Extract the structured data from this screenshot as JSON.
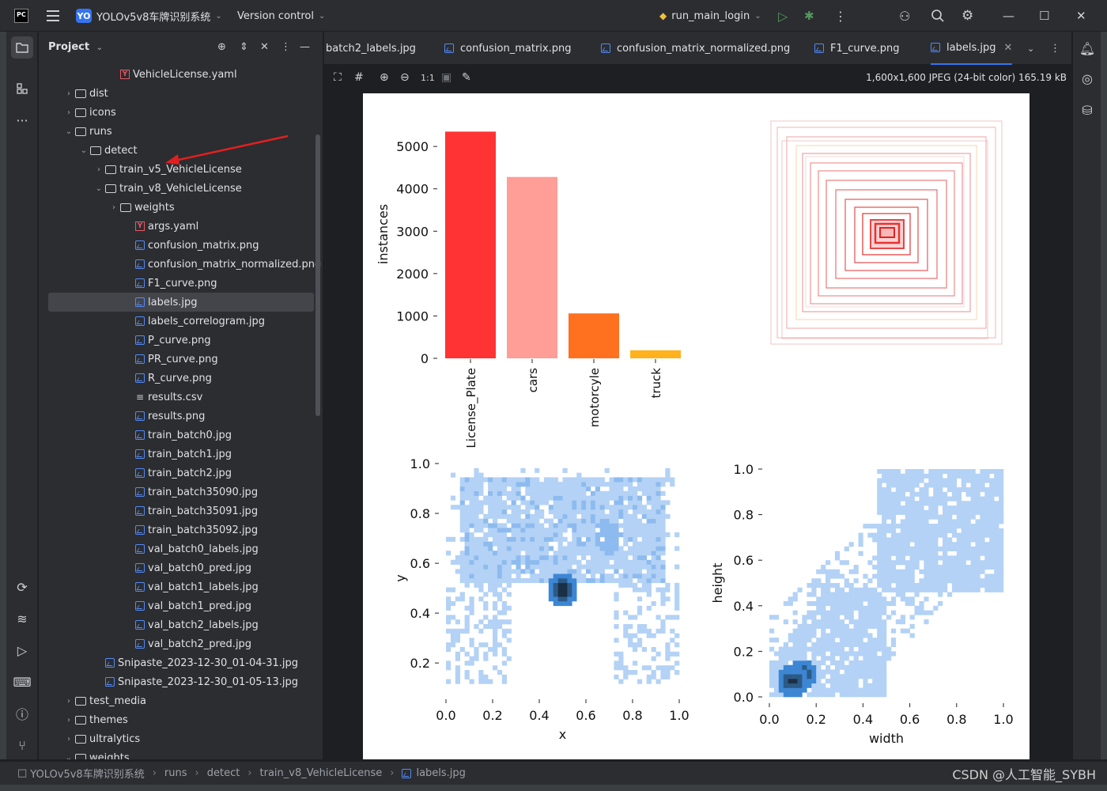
{
  "titlebar": {
    "project_badge": "YO",
    "project_name": "YOLOv5v8车牌识别系统",
    "version_control": "Version control",
    "run_config": "run_main_login"
  },
  "project_panel": {
    "title": "Project",
    "tree": [
      {
        "label": "VehicleLicense.yaml",
        "indent": 5,
        "type": "yaml",
        "chevron": ""
      },
      {
        "label": "dist",
        "indent": 2,
        "type": "folder",
        "chevron": "›"
      },
      {
        "label": "icons",
        "indent": 2,
        "type": "folder",
        "chevron": "›"
      },
      {
        "label": "runs",
        "indent": 2,
        "type": "folder",
        "chevron": "⌄"
      },
      {
        "label": "detect",
        "indent": 3,
        "type": "folder",
        "chevron": "⌄"
      },
      {
        "label": "train_v5_VehicleLicense",
        "indent": 4,
        "type": "folder",
        "chevron": "›"
      },
      {
        "label": "train_v8_VehicleLicense",
        "indent": 4,
        "type": "folder",
        "chevron": "⌄"
      },
      {
        "label": "weights",
        "indent": 5,
        "type": "folder",
        "chevron": "›"
      },
      {
        "label": "args.yaml",
        "indent": 6,
        "type": "yaml",
        "chevron": ""
      },
      {
        "label": "confusion_matrix.png",
        "indent": 6,
        "type": "img",
        "chevron": ""
      },
      {
        "label": "confusion_matrix_normalized.png",
        "indent": 6,
        "type": "img",
        "chevron": ""
      },
      {
        "label": "F1_curve.png",
        "indent": 6,
        "type": "img",
        "chevron": ""
      },
      {
        "label": "labels.jpg",
        "indent": 6,
        "type": "img",
        "chevron": "",
        "selected": true
      },
      {
        "label": "labels_correlogram.jpg",
        "indent": 6,
        "type": "img",
        "chevron": ""
      },
      {
        "label": "P_curve.png",
        "indent": 6,
        "type": "img",
        "chevron": ""
      },
      {
        "label": "PR_curve.png",
        "indent": 6,
        "type": "img",
        "chevron": ""
      },
      {
        "label": "R_curve.png",
        "indent": 6,
        "type": "img",
        "chevron": ""
      },
      {
        "label": "results.csv",
        "indent": 6,
        "type": "csv",
        "chevron": ""
      },
      {
        "label": "results.png",
        "indent": 6,
        "type": "img",
        "chevron": ""
      },
      {
        "label": "train_batch0.jpg",
        "indent": 6,
        "type": "img",
        "chevron": ""
      },
      {
        "label": "train_batch1.jpg",
        "indent": 6,
        "type": "img",
        "chevron": ""
      },
      {
        "label": "train_batch2.jpg",
        "indent": 6,
        "type": "img",
        "chevron": ""
      },
      {
        "label": "train_batch35090.jpg",
        "indent": 6,
        "type": "img",
        "chevron": ""
      },
      {
        "label": "train_batch35091.jpg",
        "indent": 6,
        "type": "img",
        "chevron": ""
      },
      {
        "label": "train_batch35092.jpg",
        "indent": 6,
        "type": "img",
        "chevron": ""
      },
      {
        "label": "val_batch0_labels.jpg",
        "indent": 6,
        "type": "img",
        "chevron": ""
      },
      {
        "label": "val_batch0_pred.jpg",
        "indent": 6,
        "type": "img",
        "chevron": ""
      },
      {
        "label": "val_batch1_labels.jpg",
        "indent": 6,
        "type": "img",
        "chevron": ""
      },
      {
        "label": "val_batch1_pred.jpg",
        "indent": 6,
        "type": "img",
        "chevron": ""
      },
      {
        "label": "val_batch2_labels.jpg",
        "indent": 6,
        "type": "img",
        "chevron": ""
      },
      {
        "label": "val_batch2_pred.jpg",
        "indent": 6,
        "type": "img",
        "chevron": ""
      },
      {
        "label": "Snipaste_2023-12-30_01-04-31.jpg",
        "indent": 4,
        "type": "img",
        "chevron": ""
      },
      {
        "label": "Snipaste_2023-12-30_01-05-13.jpg",
        "indent": 4,
        "type": "img",
        "chevron": ""
      },
      {
        "label": "test_media",
        "indent": 2,
        "type": "folder",
        "chevron": "›"
      },
      {
        "label": "themes",
        "indent": 2,
        "type": "folder",
        "chevron": "›"
      },
      {
        "label": "ultralytics",
        "indent": 2,
        "type": "folder",
        "chevron": "›"
      },
      {
        "label": "weights",
        "indent": 2,
        "type": "folder",
        "chevron": "⌄"
      }
    ]
  },
  "tabs": [
    {
      "label": "batch2_labels.jpg",
      "icon": false
    },
    {
      "label": "confusion_matrix.png",
      "icon": true
    },
    {
      "label": "confusion_matrix_normalized.png",
      "icon": true
    },
    {
      "label": "F1_curve.png",
      "icon": true
    },
    {
      "label": "labels.jpg",
      "icon": true,
      "active": true
    }
  ],
  "image_viewer": {
    "zoom_label": "1:1",
    "info": "1,600x1,600 JPEG (24-bit color) 165.19 kB"
  },
  "chart_data": [
    {
      "type": "bar",
      "categories": [
        "License_Plate",
        "cars",
        "motorcyle",
        "truck"
      ],
      "values": [
        5350,
        4280,
        1060,
        190
      ],
      "colors": [
        "#ff3333",
        "#ff9d97",
        "#ff701f",
        "#ffb21d"
      ],
      "ylabel": "instances",
      "yticks": [
        0,
        1000,
        2000,
        3000,
        4000,
        5000
      ],
      "ylim": [
        0,
        5600
      ]
    },
    {
      "type": "heatmap",
      "xlabel": "x",
      "ylabel": "y",
      "xticks": [
        0.0,
        0.2,
        0.4,
        0.6,
        0.8,
        1.0
      ],
      "yticks": [
        0.2,
        0.4,
        0.6,
        0.8,
        1.0
      ],
      "xlim": [
        0,
        1
      ],
      "ylim": [
        0.08,
        1.0
      ],
      "hotspots": [
        {
          "x": 0.5,
          "y": 0.49
        }
      ]
    },
    {
      "type": "heatmap",
      "xlabel": "width",
      "ylabel": "height",
      "xticks": [
        0.0,
        0.2,
        0.4,
        0.6,
        0.8,
        1.0
      ],
      "yticks": [
        0.0,
        0.2,
        0.4,
        0.6,
        0.8,
        1.0
      ],
      "xlim": [
        0,
        1
      ],
      "ylim": [
        0,
        1
      ],
      "hotspots": [
        {
          "x": 0.1,
          "y": 0.07
        },
        {
          "x": 0.14,
          "y": 0.1
        }
      ]
    }
  ],
  "statusbar": {
    "breadcrumbs": [
      "YOLOv5v8车牌识别系统",
      "runs",
      "detect",
      "train_v8_VehicleLicense",
      "labels.jpg"
    ],
    "watermark": "CSDN @人工智能_SYBH"
  }
}
